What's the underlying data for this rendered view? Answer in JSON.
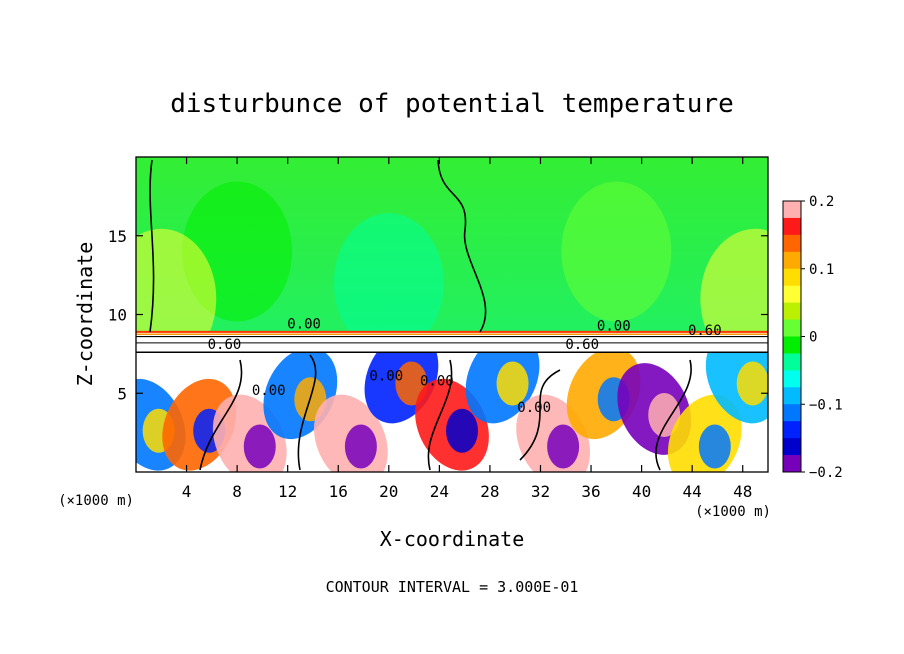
{
  "chart_data": {
    "type": "heatmap",
    "title": "disturbunce of potential temperature",
    "xlabel": "X-coordinate",
    "ylabel": "Z-coordinate",
    "x_unit_left": "(×1000 m)",
    "x_unit_right": "(×1000 m)",
    "footer": "CONTOUR INTERVAL = 3.000E-01",
    "xlim": [
      0,
      50
    ],
    "ylim": [
      0,
      20
    ],
    "x_ticks": [
      4,
      8,
      12,
      16,
      20,
      24,
      28,
      32,
      36,
      40,
      44,
      48
    ],
    "y_ticks": [
      5,
      10,
      15
    ],
    "colorbar": {
      "range": [
        -0.2,
        0.2
      ],
      "tick_values": [
        0.2,
        0.1,
        0,
        -0.1,
        -0.2
      ],
      "tick_labels": [
        "0.2",
        "0.1",
        "0",
        "−0.1",
        "−0.2"
      ],
      "colors": [
        "#ffb0b0",
        "#ff1a1a",
        "#ff6600",
        "#ffaa00",
        "#ffdd00",
        "#ffff33",
        "#bbf000",
        "#66ff33",
        "#00ee00",
        "#00ff99",
        "#00ffee",
        "#00bbff",
        "#0077ff",
        "#0022ff",
        "#0000cc",
        "#7700bb"
      ]
    },
    "contour_labels": [
      {
        "text": "0.00",
        "x": 10.5,
        "y": 4.9
      },
      {
        "text": "0.00",
        "x": 19.8,
        "y": 5.8
      },
      {
        "text": "0.00",
        "x": 23.8,
        "y": 5.5
      },
      {
        "text": "0.00",
        "x": 31.5,
        "y": 3.8
      },
      {
        "text": "0.00",
        "x": 13.3,
        "y": 9.1
      },
      {
        "text": "0.00",
        "x": 37.8,
        "y": 9.0
      },
      {
        "text": "0.60",
        "x": 7.0,
        "y": 7.8
      },
      {
        "text": "0.60",
        "x": 35.3,
        "y": 7.8
      },
      {
        "text": "0.60",
        "x": 45.0,
        "y": 8.7
      }
    ],
    "bands": [
      {
        "x": 1,
        "z": 3,
        "v": -0.1
      },
      {
        "x": 5,
        "z": 3,
        "v": 0.15
      },
      {
        "x": 9,
        "z": 2,
        "v": 0.2
      },
      {
        "x": 13,
        "z": 5,
        "v": -0.12
      },
      {
        "x": 17,
        "z": 2,
        "v": 0.18
      },
      {
        "x": 21,
        "z": 6,
        "v": -0.15
      },
      {
        "x": 25,
        "z": 3,
        "v": 0.17
      },
      {
        "x": 29,
        "z": 6,
        "v": -0.1
      },
      {
        "x": 33,
        "z": 2,
        "v": 0.2
      },
      {
        "x": 37,
        "z": 5,
        "v": 0.12
      },
      {
        "x": 41,
        "z": 4,
        "v": -0.18
      },
      {
        "x": 45,
        "z": 2,
        "v": 0.1
      },
      {
        "x": 48,
        "z": 6,
        "v": -0.08
      },
      {
        "x": 8,
        "z": 14,
        "v": -0.02
      },
      {
        "x": 20,
        "z": 12,
        "v": -0.03
      },
      {
        "x": 38,
        "z": 14,
        "v": 0.02
      },
      {
        "x": 2,
        "z": 11,
        "v": 0.07
      },
      {
        "x": 49,
        "z": 11,
        "v": 0.07
      }
    ]
  }
}
